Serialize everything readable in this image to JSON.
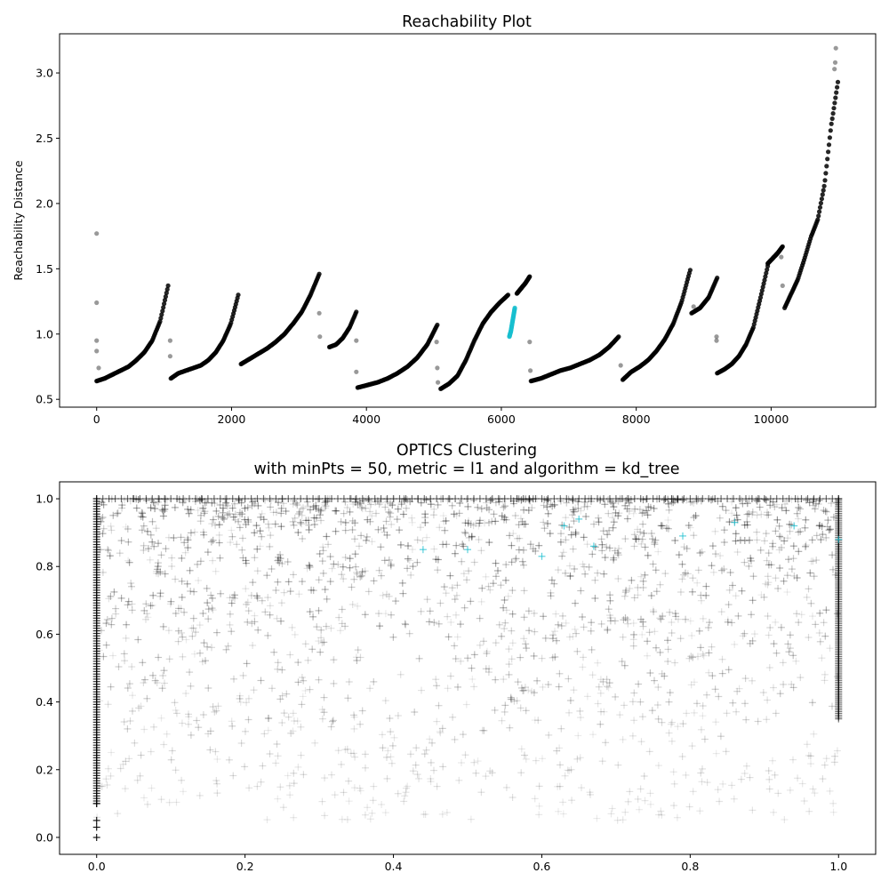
{
  "chart_data": [
    {
      "type": "scatter",
      "title": "Reachability Plot",
      "xlabel": "",
      "ylabel": "Reachability Distance",
      "xlim": [
        -550,
        11550
      ],
      "ylim": [
        0.44,
        3.3
      ],
      "xticks": [
        0,
        2000,
        4000,
        6000,
        8000,
        10000
      ],
      "xtick_labels": [
        "0",
        "2000",
        "4000",
        "6000",
        "8000",
        "10000"
      ],
      "yticks": [
        0.5,
        1.0,
        1.5,
        2.0,
        2.5,
        3.0
      ],
      "ytick_labels": [
        "0.5",
        "1.0",
        "1.5",
        "2.0",
        "2.5",
        "3.0"
      ],
      "grid": false,
      "colors": {
        "noise": "#000000",
        "highlight": "#17becf"
      },
      "segments": [
        {
          "x0": 0,
          "x1": 1060,
          "y": [
            0.64,
            0.66,
            0.69,
            0.72,
            0.75,
            0.8,
            0.86,
            0.95,
            1.1,
            1.37
          ],
          "color": "noise"
        },
        {
          "x0": 1100,
          "x1": 2100,
          "y": [
            0.66,
            0.7,
            0.72,
            0.74,
            0.76,
            0.8,
            0.86,
            0.95,
            1.08,
            1.3
          ],
          "color": "noise"
        },
        {
          "x0": 2140,
          "x1": 3300,
          "y": [
            0.77,
            0.81,
            0.85,
            0.89,
            0.94,
            1.0,
            1.08,
            1.17,
            1.3,
            1.46
          ],
          "color": "noise"
        },
        {
          "x0": 3450,
          "x1": 3850,
          "y": [
            0.9,
            0.92,
            0.97,
            1.05,
            1.17
          ],
          "color": "noise"
        },
        {
          "x0": 3870,
          "x1": 5050,
          "y": [
            0.59,
            0.61,
            0.63,
            0.66,
            0.7,
            0.75,
            0.82,
            0.92,
            1.07
          ],
          "color": "noise"
        },
        {
          "x0": 5100,
          "x1": 6100,
          "y": [
            0.58,
            0.62,
            0.68,
            0.8,
            0.95,
            1.08,
            1.17,
            1.24,
            1.3
          ],
          "color": "noise"
        },
        {
          "x0": 6120,
          "x1": 6200,
          "y": [
            0.98,
            1.02,
            1.08,
            1.14,
            1.2
          ],
          "color": "highlight"
        },
        {
          "x0": 6230,
          "x1": 6420,
          "y": [
            1.31,
            1.35,
            1.39,
            1.44
          ],
          "color": "noise"
        },
        {
          "x0": 6440,
          "x1": 7740,
          "y": [
            0.64,
            0.66,
            0.69,
            0.72,
            0.74,
            0.77,
            0.8,
            0.84,
            0.9,
            0.98
          ],
          "color": "noise"
        },
        {
          "x0": 7800,
          "x1": 8800,
          "y": [
            0.65,
            0.71,
            0.75,
            0.8,
            0.87,
            0.96,
            1.08,
            1.25,
            1.49
          ],
          "color": "noise"
        },
        {
          "x0": 8820,
          "x1": 9200,
          "y": [
            1.16,
            1.2,
            1.28,
            1.43
          ],
          "color": "noise"
        },
        {
          "x0": 9200,
          "x1": 9950,
          "y": [
            0.7,
            0.73,
            0.77,
            0.83,
            0.92,
            1.05,
            1.28,
            1.52
          ],
          "color": "noise"
        },
        {
          "x0": 9950,
          "x1": 10170,
          "y": [
            1.54,
            1.58,
            1.62,
            1.67
          ],
          "color": "noise"
        },
        {
          "x0": 10200,
          "x1": 10990,
          "y": [
            1.2,
            1.31,
            1.42,
            1.58,
            1.75,
            1.88,
            2.15,
            2.6,
            2.93
          ],
          "color": "noise"
        }
      ],
      "outliers": [
        {
          "x": 0,
          "y": 1.77
        },
        {
          "x": 0,
          "y": 1.24
        },
        {
          "x": 0,
          "y": 0.95
        },
        {
          "x": 0,
          "y": 0.87
        },
        {
          "x": 30,
          "y": 0.74
        },
        {
          "x": 1090,
          "y": 0.95
        },
        {
          "x": 1090,
          "y": 0.83
        },
        {
          "x": 3300,
          "y": 1.16
        },
        {
          "x": 3310,
          "y": 0.98
        },
        {
          "x": 3850,
          "y": 0.95
        },
        {
          "x": 3850,
          "y": 0.71
        },
        {
          "x": 5040,
          "y": 0.94
        },
        {
          "x": 5050,
          "y": 0.74
        },
        {
          "x": 5060,
          "y": 0.63
        },
        {
          "x": 6420,
          "y": 0.94
        },
        {
          "x": 6430,
          "y": 0.72
        },
        {
          "x": 7770,
          "y": 0.76
        },
        {
          "x": 8850,
          "y": 1.21
        },
        {
          "x": 9190,
          "y": 0.98
        },
        {
          "x": 9190,
          "y": 0.95
        },
        {
          "x": 10150,
          "y": 1.59
        },
        {
          "x": 10170,
          "y": 1.37
        },
        {
          "x": 10960,
          "y": 3.19
        },
        {
          "x": 10950,
          "y": 3.08
        },
        {
          "x": 10940,
          "y": 3.03
        }
      ]
    },
    {
      "type": "scatter",
      "title": "OPTICS Clustering",
      "subtitle": "with minPts = 50, metric = l1 and algorithm = kd_tree",
      "xlabel": "",
      "ylabel": "",
      "xlim": [
        -0.05,
        1.05
      ],
      "ylim": [
        -0.05,
        1.05
      ],
      "xticks": [
        0.0,
        0.2,
        0.4,
        0.6,
        0.8,
        1.0
      ],
      "xtick_labels": [
        "0.0",
        "0.2",
        "0.4",
        "0.6",
        "0.8",
        "1.0"
      ],
      "yticks": [
        0.0,
        0.2,
        0.4,
        0.6,
        0.8,
        1.0
      ],
      "ytick_labels": [
        "0.0",
        "0.2",
        "0.4",
        "0.6",
        "0.8",
        "1.0"
      ],
      "grid": false,
      "marker": "+",
      "colors": {
        "noise": "#000000",
        "highlight": "#17becf"
      },
      "point_count": 1800,
      "highlight_points": [
        [
          0.44,
          0.85
        ],
        [
          0.5,
          0.85
        ],
        [
          0.6,
          0.83
        ],
        [
          0.63,
          0.92
        ],
        [
          0.65,
          0.94
        ],
        [
          0.67,
          0.86
        ],
        [
          0.79,
          0.89
        ],
        [
          0.86,
          0.93
        ],
        [
          0.94,
          0.92
        ],
        [
          1.0,
          0.88
        ]
      ],
      "edge_points": [
        [
          0.0,
          0.0
        ],
        [
          0.0,
          0.03
        ],
        [
          0.0,
          0.05
        ],
        [
          0.0,
          0.1
        ]
      ]
    }
  ]
}
